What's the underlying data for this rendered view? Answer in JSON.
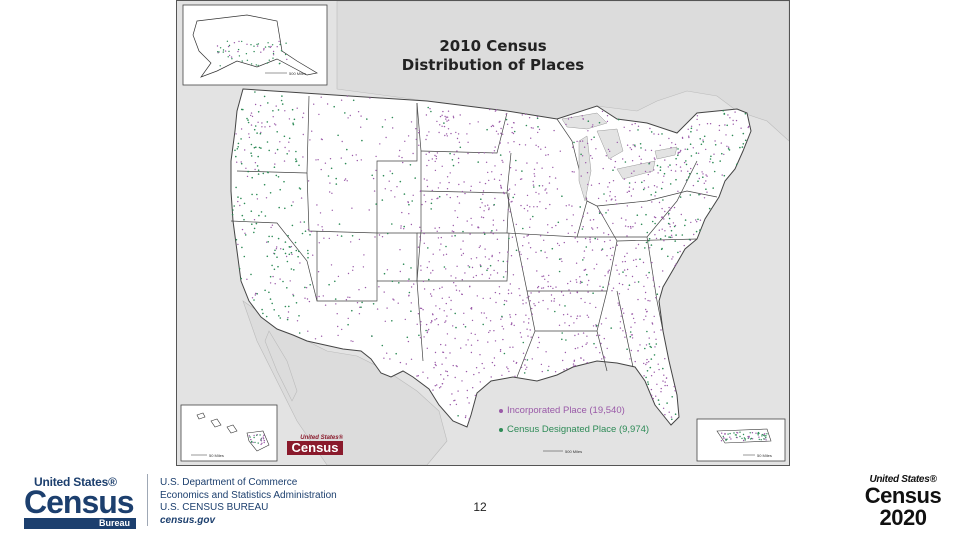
{
  "map": {
    "title_line1": "2010 Census",
    "title_line2": "Distribution of Places",
    "legend": [
      {
        "label": "Incorporated Place (19,540)",
        "color": "#9a5aa8"
      },
      {
        "label": "Census Designated Place (9,974)",
        "color": "#2e8b57"
      }
    ],
    "inset_logo": {
      "top": "United States®",
      "word": "Census",
      "sub": "Bureau"
    },
    "scale_labels": {
      "alaska": "500 Miles",
      "hawaii": "50 Miles",
      "main": "500 Miles",
      "puerto_rico": "50 Miles"
    },
    "colors": {
      "water": "#e3e3e3",
      "land": "#ffffff",
      "incorporated": "#9a5aa8",
      "cdp": "#2e8b57"
    }
  },
  "footer": {
    "logo": {
      "united_states": "United States®",
      "census": "Census",
      "bureau": "Bureau"
    },
    "dept_lines": [
      "U.S. Department of Commerce",
      "Economics and Statistics Administration",
      "U.S. CENSUS BUREAU"
    ],
    "website": "census.gov",
    "page_number": "12",
    "census2020": {
      "united_states": "United States®",
      "census": "Census",
      "year": "2020"
    }
  }
}
